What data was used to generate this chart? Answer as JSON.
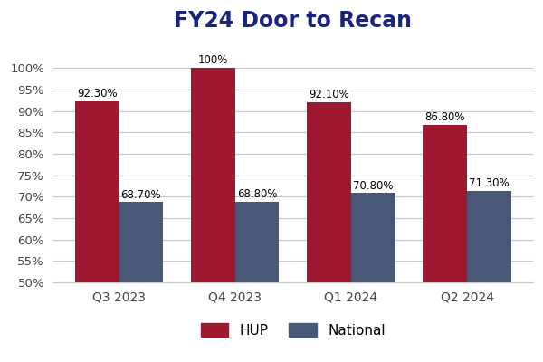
{
  "title": "FY24 Door to Recan",
  "title_fontsize": 17,
  "title_color": "#1a237e",
  "title_fontweight": "bold",
  "categories": [
    "Q3 2023",
    "Q4 2023",
    "Q1 2024",
    "Q2 2024"
  ],
  "hup_values": [
    92.3,
    100.0,
    92.1,
    86.8
  ],
  "national_values": [
    68.7,
    68.8,
    70.8,
    71.3
  ],
  "hup_color": "#a01830",
  "national_color": "#4a5878",
  "ylim_min": 50,
  "ylim_max": 106,
  "yticks": [
    50,
    55,
    60,
    65,
    70,
    75,
    80,
    85,
    90,
    95,
    100
  ],
  "bar_width": 0.38,
  "label_fontsize": 8.5,
  "legend_labels": [
    "HUP",
    "National"
  ],
  "background_color": "#ffffff",
  "grid_color": "#c8c8c8",
  "tick_label_fontsize": 9.5,
  "cat_label_fontsize": 10
}
